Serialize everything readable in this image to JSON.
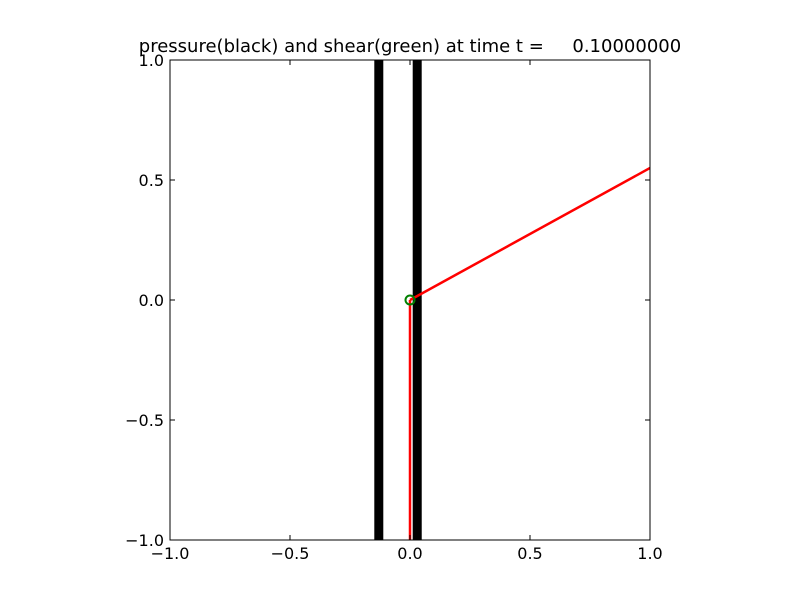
{
  "chart_data": {
    "type": "line",
    "title": "pressure(black) and shear(green) at time t =     0.10000000",
    "xlabel": "",
    "ylabel": "",
    "xlim": [
      -1.0,
      1.0
    ],
    "ylim": [
      -1.0,
      1.0
    ],
    "x_ticks": [
      -1.0,
      -0.5,
      0.0,
      0.5,
      1.0
    ],
    "x_tick_labels": [
      "−1.0",
      "−0.5",
      "0.0",
      "0.5",
      "1.0"
    ],
    "y_ticks": [
      -1.0,
      -0.5,
      0.0,
      0.5,
      1.0
    ],
    "y_tick_labels": [
      "−1.0",
      "−0.5",
      "0.0",
      "0.5",
      "1.0"
    ],
    "grid": false,
    "legend": "none",
    "series": [
      {
        "color": "#000000",
        "style": "thick",
        "points": [
          [
            -0.13,
            -1.0
          ],
          [
            -0.13,
            1.0
          ]
        ]
      },
      {
        "color": "#000000",
        "style": "thick",
        "points": [
          [
            0.03,
            -1.0
          ],
          [
            0.03,
            1.0
          ]
        ]
      },
      {
        "color": "#000000",
        "style": "thin",
        "points": [
          [
            0.045,
            -1.0
          ],
          [
            0.045,
            0.0
          ]
        ]
      },
      {
        "color": "#ff0000",
        "style": "medium",
        "points": [
          [
            0.0,
            -1.0
          ],
          [
            0.0,
            0.0
          ]
        ]
      },
      {
        "color": "#ff0000",
        "style": "medium",
        "points": [
          [
            0.0,
            0.0
          ],
          [
            1.0,
            0.55
          ]
        ]
      }
    ],
    "markers": [
      {
        "x": 0.0,
        "y": 0.0,
        "color": "#008000",
        "shape": "circle-open"
      }
    ]
  }
}
